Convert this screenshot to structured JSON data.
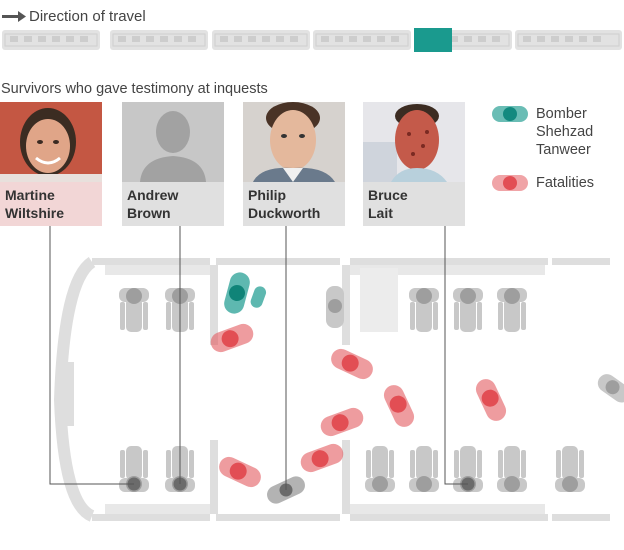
{
  "direction": {
    "label": "Direction of travel"
  },
  "subtitle": "Survivors who gave testimony at inquests",
  "survivors": [
    {
      "name_line1": "Martine",
      "name_line2": "Wiltshire"
    },
    {
      "name_line1": "Andrew",
      "name_line2": "Brown"
    },
    {
      "name_line1": "Philip",
      "name_line2": "Duckworth"
    },
    {
      "name_line1": "Bruce",
      "name_line2": "Lait"
    }
  ],
  "legend": {
    "bomber_line1": "Bomber",
    "bomber_line2": "Shehzad",
    "bomber_line3": "Tanweer",
    "fatalities": "Fatalities"
  },
  "colors": {
    "bomber": "#1a9a8e",
    "fatality": "#e35a5f",
    "survivor": "#6b6b6b",
    "seat": "#c8c8c8",
    "carriage_wall": "#dedede",
    "highlight_car": "#1a9a8e"
  },
  "icons": {
    "arrow": "arrow-right-icon",
    "placeholder": "person-silhouette-icon"
  }
}
